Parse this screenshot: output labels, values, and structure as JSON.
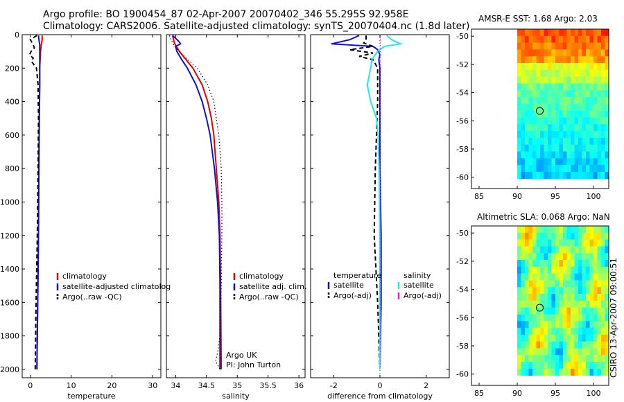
{
  "title_line1": "Argo profile: BO 1900454_87 02-Apr-2007 20070402_346 55.295S 92.958E",
  "title_line2": "Climatology: CARS2006. Satellite-adjusted climatology: synTS_20070404.nc (1.8d later)",
  "stamp": "CSIRO 13-Apr-2007 09:00:51",
  "colors": {
    "red": "#e00000",
    "blue": "#1010d0",
    "black": "#000000",
    "cyan": "#20e8f0",
    "magenta": "#e020e0"
  },
  "chart_data": [
    {
      "type": "line",
      "name": "temperature",
      "xlabel": "temperature",
      "ylabel": "",
      "xlim": [
        -2,
        32
      ],
      "ylim": [
        2050,
        0
      ],
      "xticks": [
        0,
        10,
        20,
        30
      ],
      "yticks": [
        0,
        200,
        400,
        600,
        800,
        1000,
        1200,
        1400,
        1600,
        1800,
        2000
      ],
      "legend": [
        "climatology",
        "satellite-adjusted climatolog",
        "Argo(..raw -QC)"
      ],
      "series": [
        {
          "name": "climatology",
          "color": "red",
          "style": "solid",
          "depth": [
            5,
            30,
            60,
            100,
            150,
            200,
            300,
            500,
            800,
            1200,
            1600,
            2000
          ],
          "values": [
            2.9,
            2.9,
            2.7,
            2.5,
            2.4,
            2.3,
            2.3,
            2.2,
            2.1,
            2.0,
            1.8,
            1.6
          ]
        },
        {
          "name": "satellite-adjusted climatology",
          "color": "blue",
          "style": "solid",
          "depth": [
            5,
            30,
            60,
            100,
            150,
            200,
            300,
            500,
            800,
            1200,
            1600,
            2000
          ],
          "values": [
            2.0,
            2.1,
            2.3,
            2.3,
            2.3,
            2.3,
            2.3,
            2.2,
            2.1,
            2.0,
            1.8,
            1.6
          ]
        },
        {
          "name": "Argo(..raw -QC)",
          "color": "black",
          "style": "dashed",
          "depth": [
            5,
            30,
            60,
            80,
            100,
            120,
            140,
            160,
            200,
            300,
            500,
            800,
            1200,
            1600,
            2000
          ],
          "values": [
            1.6,
            0.0,
            0.7,
            1.0,
            0.2,
            -0.2,
            0.7,
            0.3,
            1.5,
            1.9,
            2.0,
            1.9,
            1.7,
            1.4,
            1.2
          ]
        }
      ]
    },
    {
      "type": "line",
      "name": "salinity",
      "xlabel": "salinity",
      "ylabel": "",
      "xlim": [
        33.85,
        36.1
      ],
      "ylim": [
        2050,
        0
      ],
      "xticks": [
        34,
        34.5,
        35,
        35.5,
        36
      ],
      "legend": [
        "climatology",
        "satellite adj. clim.",
        "Argo(..raw -QC)"
      ],
      "annotations": [
        "Argo UK",
        "PI: John Turton"
      ],
      "series": [
        {
          "name": "climatology",
          "color": "red",
          "style": "solid",
          "depth": [
            5,
            50,
            100,
            150,
            200,
            300,
            400,
            500,
            600,
            800,
            1000,
            1200,
            1500,
            2000
          ],
          "values": [
            33.95,
            33.98,
            34.06,
            34.17,
            34.28,
            34.43,
            34.52,
            34.58,
            34.62,
            34.66,
            34.7,
            34.72,
            34.73,
            34.74
          ]
        },
        {
          "name": "satellite adj. clim.",
          "color": "blue",
          "style": "solid",
          "depth": [
            5,
            40,
            55,
            70,
            100,
            150,
            200,
            300,
            400,
            500,
            600,
            800,
            1000,
            1200,
            1500,
            2000
          ],
          "values": [
            33.95,
            34.05,
            34.08,
            34.0,
            34.02,
            34.1,
            34.19,
            34.33,
            34.43,
            34.5,
            34.56,
            34.63,
            34.68,
            34.71,
            34.72,
            34.72
          ]
        },
        {
          "name": "Argo(..raw -QC)",
          "color": "black",
          "style": "dotted",
          "depth": [
            5,
            50,
            100,
            150,
            200,
            300,
            400,
            500,
            600,
            800,
            1000,
            1200,
            1500,
            1800,
            1900,
            1950,
            2000
          ],
          "values": [
            33.9,
            33.95,
            34.05,
            34.2,
            34.35,
            34.52,
            34.62,
            34.66,
            34.7,
            34.74,
            34.75,
            34.75,
            34.74,
            34.72,
            34.68,
            34.65,
            34.72
          ]
        }
      ]
    },
    {
      "type": "line",
      "name": "difference",
      "xlabel": "difference from climatology",
      "ylabel": "",
      "xlim": [
        -3,
        3
      ],
      "ylim": [
        2050,
        0
      ],
      "xticks": [
        -2,
        0,
        2
      ],
      "legend_temperature_header": "temperature",
      "legend_salinity_header": "salinity",
      "legend_temperature": [
        "satellite",
        "Argo(-adj)"
      ],
      "legend_salinity": [
        "satellite",
        "Argo(-adj)"
      ],
      "series": [
        {
          "name": "temperature satellite",
          "color": "blue",
          "style": "solid",
          "depth": [
            5,
            30,
            55,
            70,
            90,
            120,
            150,
            200,
            400,
            800,
            1200,
            1600,
            2000
          ],
          "values": [
            -0.9,
            -1.3,
            -2.1,
            -0.3,
            -0.1,
            0.0,
            -0.05,
            0.0,
            0.0,
            0.0,
            0.05,
            0.05,
            0.0
          ]
        },
        {
          "name": "temperature Argo(-adj)",
          "color": "black",
          "style": "dashed",
          "depth": [
            5,
            30,
            50,
            70,
            90,
            110,
            130,
            150,
            200,
            400,
            800,
            1200,
            1600,
            1800,
            2000
          ],
          "values": [
            -0.6,
            -0.6,
            -0.7,
            -0.3,
            -1.3,
            -0.3,
            -0.9,
            -0.3,
            -0.1,
            -0.1,
            -0.2,
            -0.25,
            -0.1,
            -0.05,
            0.0
          ]
        },
        {
          "name": "salinity satellite",
          "color": "cyan",
          "style": "solid",
          "depth": [
            5,
            30,
            55,
            70,
            100,
            150,
            200,
            300,
            400,
            500,
            600,
            800,
            1000,
            1200,
            1600,
            2000
          ],
          "values": [
            0.3,
            0.5,
            0.9,
            0.2,
            -0.1,
            -0.35,
            -0.4,
            -0.55,
            -0.4,
            -0.15,
            -0.08,
            -0.04,
            -0.02,
            0.0,
            0.0,
            0.0
          ]
        },
        {
          "name": "salinity Argo(-adj)",
          "color": "magenta",
          "style": "dotted",
          "depth": [
            5,
            200,
            600,
            1200,
            2000
          ],
          "values": [
            0.02,
            0.02,
            0.02,
            0.02,
            0.02
          ]
        }
      ]
    },
    {
      "type": "heatmap",
      "name": "sst_map",
      "title": "AMSR-E SST: 1.68 Argo: 2.03",
      "xlim": [
        84,
        102
      ],
      "ylim": [
        -60.8,
        -49.5
      ],
      "xticks": [
        85,
        90,
        95,
        100
      ],
      "yticks": [
        -50,
        -52,
        -54,
        -56,
        -58,
        -60
      ],
      "data_extent": {
        "lon": [
          90,
          102
        ],
        "lat": [
          -60.1,
          -49.5
        ]
      },
      "marker": {
        "lon": 92.958,
        "lat": -55.295
      }
    },
    {
      "type": "heatmap",
      "name": "sla_map",
      "title": "Altimetric SLA: 0.068 Argo: NaN",
      "xlim": [
        84,
        102
      ],
      "ylim": [
        -60.8,
        -49.5
      ],
      "xticks": [
        85,
        90,
        95,
        100
      ],
      "yticks": [
        -50,
        -52,
        -54,
        -56,
        -58,
        -60
      ],
      "data_extent": {
        "lon": [
          90,
          102
        ],
        "lat": [
          -60.1,
          -49.5
        ]
      },
      "marker": {
        "lon": 92.958,
        "lat": -55.295
      }
    }
  ]
}
